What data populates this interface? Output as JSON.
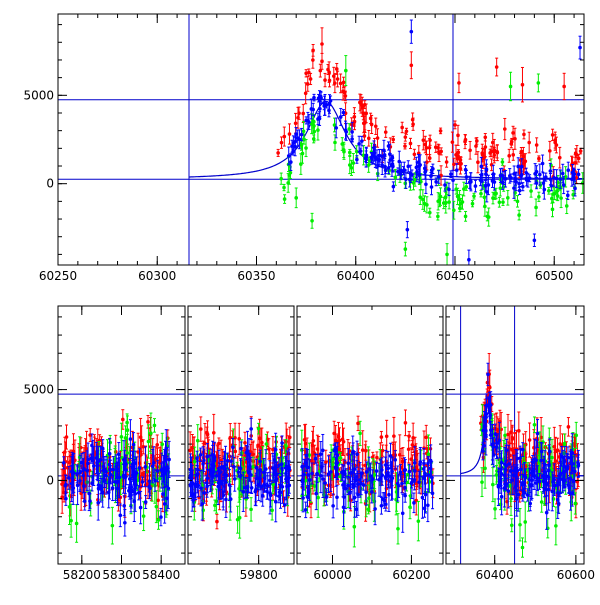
{
  "chart_data": [
    {
      "type": "scatter",
      "title": "",
      "xlabel": "",
      "ylabel": "",
      "xlim": [
        60250,
        60515
      ],
      "ylim": [
        -4600,
        9600
      ],
      "x_ticks": [
        60250,
        60300,
        60350,
        60400,
        60450,
        60500
      ],
      "y_ticks": [
        0,
        5000
      ],
      "hlines": [
        4750,
        250
      ],
      "vlines": [
        60316,
        60449
      ],
      "model_curve": {
        "peak_x": 60385,
        "peak_y": 4650,
        "baseline": 250,
        "width": 12,
        "start_x": 60316
      },
      "series": [
        {
          "color": "#ff0000",
          "x_range": [
            60360,
            60515
          ],
          "trend": [
            [
              60360,
              2200
            ],
            [
              60372,
              4500
            ],
            [
              60380,
              6800
            ],
            [
              60388,
              6300
            ],
            [
              60400,
              3800
            ],
            [
              60430,
              2000
            ],
            [
              60470,
              1800
            ],
            [
              60515,
              1700
            ]
          ],
          "spread": 1100,
          "count": 150,
          "outliers": [
            [
              60383,
              7900
            ],
            [
              60428,
              6700
            ],
            [
              60452,
              5700
            ],
            [
              60471,
              6600
            ],
            [
              60484,
              5600
            ],
            [
              60505,
              5500
            ]
          ]
        },
        {
          "color": "#00ee00",
          "x_range": [
            60362,
            60515
          ],
          "trend": [
            [
              60362,
              -300
            ],
            [
              60375,
              2500
            ],
            [
              60384,
              3600
            ],
            [
              60395,
              1600
            ],
            [
              60420,
              200
            ],
            [
              60450,
              -900
            ],
            [
              60480,
              -600
            ],
            [
              60515,
              -300
            ]
          ],
          "spread": 900,
          "count": 120,
          "outliers": [
            [
              60395,
              6400
            ],
            [
              60370,
              -800
            ],
            [
              60378,
              -2100
            ],
            [
              60425,
              -3700
            ],
            [
              60446,
              -4000
            ],
            [
              60478,
              5500
            ],
            [
              60492,
              5700
            ]
          ]
        },
        {
          "color": "#0000ff",
          "x_range": [
            60366,
            60515
          ],
          "trend": [
            [
              60366,
              1500
            ],
            [
              60378,
              4000
            ],
            [
              60385,
              4600
            ],
            [
              60400,
              2200
            ],
            [
              60420,
              700
            ],
            [
              60450,
              300
            ],
            [
              60515,
              250
            ]
          ],
          "spread": 650,
          "count": 170,
          "outliers": [
            [
              60428,
              8600
            ],
            [
              60426,
              -2600
            ],
            [
              60457,
              -4300
            ],
            [
              60490,
              -3200
            ],
            [
              60513,
              7700
            ]
          ]
        }
      ]
    },
    {
      "type": "scatter",
      "title": "",
      "xlabel": "",
      "ylabel": "",
      "ylim": [
        -4600,
        9600
      ],
      "y_ticks": [
        0,
        5000
      ],
      "hlines": [
        4750,
        250
      ],
      "vlines": [
        60316,
        60449
      ],
      "segments": [
        {
          "xlim": [
            58140,
            58460
          ],
          "x_ticks": [
            58200,
            58300,
            58400
          ],
          "data_range": [
            58150,
            58420
          ]
        },
        {
          "xlim": [
            59620,
            59890
          ],
          "x_ticks": [
            59800
          ],
          "data_range": [
            59625,
            59880
          ]
        },
        {
          "xlim": [
            59910,
            60280
          ],
          "x_ticks": [
            60000,
            60200
          ],
          "data_range": [
            59920,
            60255
          ]
        },
        {
          "xlim": [
            60280,
            60620
          ],
          "x_ticks": [
            60400,
            60600
          ],
          "data_range": [
            60365,
            60610
          ]
        }
      ],
      "model_curve": {
        "peak_x": 60385,
        "peak_y": 4650,
        "baseline": 250,
        "width": 12,
        "start_x": 60316
      },
      "series": [
        {
          "color": "#ff0000",
          "level": 800,
          "spread": 1900,
          "count_per_segment": [
            120,
            120,
            120,
            130
          ]
        },
        {
          "color": "#00ee00",
          "level": 0,
          "spread": 2500,
          "count_per_segment": [
            60,
            50,
            50,
            70
          ]
        },
        {
          "color": "#0000ff",
          "level": 200,
          "spread": 1500,
          "count_per_segment": [
            130,
            130,
            130,
            140
          ]
        }
      ]
    }
  ],
  "colors": {
    "axis": "#000000",
    "guide_line": "#0000cc",
    "red": "#ff0000",
    "green": "#00ee00",
    "blue": "#0000ff"
  }
}
